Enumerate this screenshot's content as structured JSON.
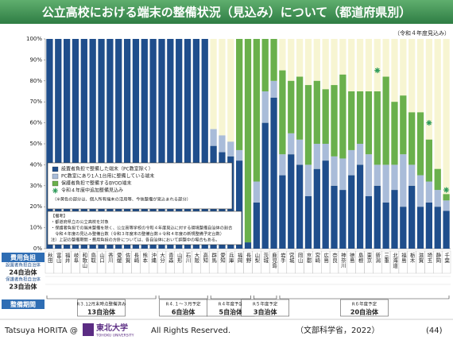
{
  "title": "公立高校における端末の整備状況（見込み）について（都道府県別）",
  "chart_data": {
    "type": "bar",
    "stacked": true,
    "note": "（令和４年度見込み）",
    "categories": [
      "秋田",
      "富山",
      "福井",
      "岐阜",
      "和歌山",
      "鳥取",
      "山口",
      "香川",
      "愛媛",
      "佐賀",
      "長崎",
      "熊本",
      "沖縄",
      "大分",
      "青森",
      "山形",
      "石川",
      "大阪",
      "高知",
      "群馬",
      "愛知",
      "兵庫",
      "福岡",
      "長野",
      "山梨",
      "茨城",
      "鹿児島",
      "岩手",
      "宮城",
      "岡山",
      "京都",
      "宮崎",
      "広島",
      "奈良",
      "神奈川",
      "徳島",
      "島根",
      "東京",
      "新潟",
      "三重",
      "北海道",
      "福島",
      "栃木",
      "滋賀",
      "埼玉",
      "静岡",
      "千葉"
    ],
    "series": [
      {
        "name": "設置者負担で整備した端末（PC教室除く）",
        "color": "#1f4e8c",
        "values": [
          100,
          100,
          100,
          100,
          100,
          100,
          100,
          100,
          100,
          100,
          100,
          100,
          100,
          100,
          100,
          100,
          100,
          100,
          100,
          49,
          46,
          44,
          42,
          3,
          22,
          60,
          72,
          35,
          45,
          40,
          25,
          38,
          42,
          30,
          28,
          35,
          40,
          25,
          30,
          22,
          28,
          20,
          30,
          20,
          22,
          20,
          18
        ]
      },
      {
        "name": "PC教室にあり1人1台用に整備している端末",
        "color": "#a9bcd9",
        "values": [
          0,
          0,
          0,
          0,
          0,
          0,
          0,
          0,
          0,
          0,
          0,
          0,
          0,
          0,
          0,
          0,
          0,
          0,
          0,
          8,
          8,
          7,
          5,
          0,
          10,
          15,
          8,
          10,
          10,
          12,
          15,
          12,
          8,
          14,
          15,
          12,
          10,
          20,
          10,
          18,
          12,
          25,
          10,
          15,
          10,
          8,
          5
        ]
      },
      {
        "name": "保護者負担で整備するBYOD端末",
        "color": "#6ab04c",
        "values": [
          0,
          0,
          0,
          0,
          0,
          0,
          0,
          0,
          0,
          0,
          0,
          0,
          0,
          0,
          0,
          0,
          0,
          0,
          0,
          0,
          0,
          0,
          53,
          97,
          68,
          25,
          20,
          40,
          25,
          30,
          38,
          30,
          26,
          34,
          40,
          28,
          25,
          30,
          35,
          42,
          30,
          28,
          25,
          30,
          20,
          10,
          3
        ]
      }
    ],
    "markers": {
      "name": "令和４年度中追加整備見込み",
      "color": "#2e9b5a",
      "values": [
        null,
        null,
        null,
        null,
        null,
        null,
        null,
        null,
        null,
        null,
        null,
        null,
        null,
        null,
        null,
        null,
        null,
        null,
        null,
        null,
        null,
        null,
        null,
        null,
        null,
        null,
        null,
        null,
        null,
        null,
        null,
        null,
        null,
        null,
        null,
        null,
        null,
        null,
        85,
        null,
        null,
        null,
        null,
        null,
        60,
        null,
        28
      ]
    },
    "remainder_note": "（※黄色の部分は、個人所有端末の活用等、今後整備が見込まれる部分）",
    "ylim": [
      0,
      100
    ],
    "yticks": [
      {
        "value": 0,
        "label": "0%"
      },
      {
        "value": 10,
        "label": "10%"
      },
      {
        "value": 20,
        "label": "20%"
      },
      {
        "value": 30,
        "label": "30%"
      },
      {
        "value": 40,
        "label": "40%"
      },
      {
        "value": 50,
        "label": "50%"
      },
      {
        "value": 60,
        "label": "60%"
      },
      {
        "value": 70,
        "label": "70%"
      },
      {
        "value": 80,
        "label": "80%"
      },
      {
        "value": 90,
        "label": "90%"
      },
      {
        "value": 100,
        "label": "100%"
      }
    ]
  },
  "remarks": [
    "【備考】",
    "・都道府県立の公立高校を対象",
    "・保護者負担での端末整備を除く、公立高等学校の令和４年度見込に対する環境整備自治体の割合",
    "　令和４年度の見込み整備台数（令和３年度末の整備台数＋令和４年度の新規整備予定台数）",
    "注）上記の整備期間・費用負担の方針については、各自治体において調整中の場合もある。"
  ],
  "cost": {
    "heading": "費用負担",
    "rows": [
      {
        "label": "設置者負担自治体",
        "count": "24自治体"
      },
      {
        "label": "保護者負担自治体",
        "count": "23自治体"
      }
    ]
  },
  "period": {
    "heading": "整備期間",
    "groups": [
      {
        "label": "R３.12月末時点整備済み",
        "count": "13自治体"
      },
      {
        "label": "R４.１～３月予定",
        "count": "6自治体"
      },
      {
        "label": "R４年度予定",
        "count": "5自治体"
      },
      {
        "label": "R５年度予定",
        "count": "3自治体"
      },
      {
        "label": "R６年度予定",
        "count": "20自治体"
      }
    ]
  },
  "footer": {
    "author": "Tatsuya HORITA @",
    "university": "東北大学",
    "university_en": "TOHOKU UNIVERSITY",
    "rights": "All Rights Reserved.",
    "source": "（文部科学省，2022）",
    "page": "(44)"
  }
}
